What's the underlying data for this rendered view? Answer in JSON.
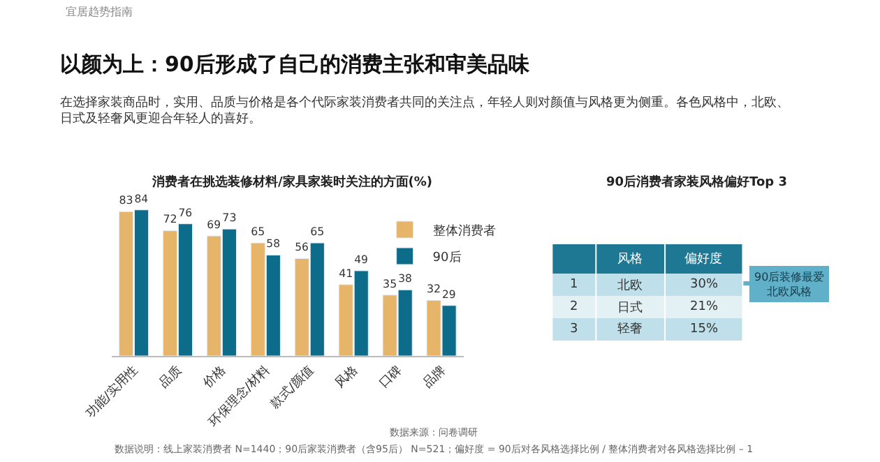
{
  "chart_data": [
    {
      "type": "bar",
      "title": "消费者在挑选装修材料/家具家装时关注的方面(%)",
      "categories": [
        "功能/实用性",
        "品质",
        "价格",
        "环保理念/材料",
        "款式/颜值",
        "风格",
        "口碑",
        "品牌"
      ],
      "series": [
        {
          "name": "整体消费者",
          "color": "#e6b56a",
          "values": [
            83,
            72,
            69,
            65,
            56,
            41,
            35,
            32
          ]
        },
        {
          "name": "90后",
          "color": "#0d6c8a",
          "values": [
            84,
            76,
            73,
            58,
            65,
            49,
            38,
            29
          ]
        }
      ],
      "data_labels": true,
      "legend": "top right",
      "annotations": [
        "宜居趋势指南",
        "以颜为上：90后形成了自己的消费主张和审美品味",
        "在选择家装商品时，实用、品质与价格是各个代际家装消费者共同的关注点，年轻人则对颜值与风格更为侧重。各色风格中，北欧、日式及轻奢风更迎合年轻人的喜好。",
        "数据来源：问卷调研",
        "数据说明：线上家装消费者 N=1440；90后家装消费者（含95后） N=521；偏好度 = 90后对各风格选择比例 / 整体消费者对各风格选择比例 – 1"
      ]
    },
    {
      "type": "other",
      "title": "90后消费者家装风格偏好Top 3",
      "categories": [
        "北欧",
        "日式",
        "轻奢"
      ],
      "value_labels": [
        "30%",
        "21%",
        "15%"
      ],
      "colors": [
        "#bfe0ea",
        "#e3f0f4",
        "#bfe0ea"
      ],
      "annotations": [
        "风格",
        "偏好度",
        "90后装修最爱北欧风格",
        "1",
        "2",
        "3"
      ]
    }
  ]
}
